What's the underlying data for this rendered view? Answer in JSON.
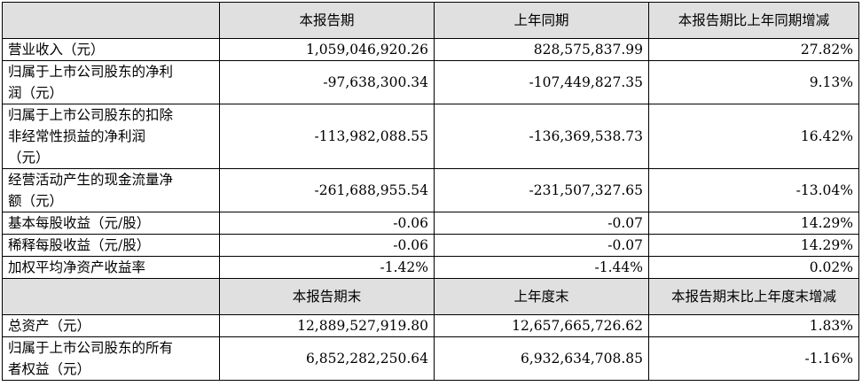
{
  "table": {
    "header1": [
      "",
      "本报告期",
      "上年同期",
      "本报告期比上年同期增减"
    ],
    "rows1": [
      {
        "label_lines": [
          "营业收入（元）"
        ],
        "current": "1,059,046,920.26",
        "prior": "828,575,837.99",
        "change": "27.82%"
      },
      {
        "label_lines": [
          "归属于上市公司股东的净利",
          "润（元）"
        ],
        "current": "-97,638,300.34",
        "prior": "-107,449,827.35",
        "change": "9.13%"
      },
      {
        "label_lines": [
          "归属于上市公司股东的扣除",
          "非经常性损益的净利润",
          "（元）"
        ],
        "current": "-113,982,088.55",
        "prior": "-136,369,538.73",
        "change": "16.42%"
      },
      {
        "label_lines": [
          "经营活动产生的现金流量净",
          "额（元）"
        ],
        "current": "-261,688,955.54",
        "prior": "-231,507,327.65",
        "change": "-13.04%"
      },
      {
        "label_lines": [
          "基本每股收益（元/股）"
        ],
        "current": "-0.06",
        "prior": "-0.07",
        "change": "14.29%"
      },
      {
        "label_lines": [
          "稀释每股收益（元/股）"
        ],
        "current": "-0.06",
        "prior": "-0.07",
        "change": "14.29%"
      },
      {
        "label_lines": [
          "加权平均净资产收益率"
        ],
        "current": "-1.42%",
        "prior": "-1.44%",
        "change": "0.02%"
      }
    ],
    "header2": [
      "",
      "本报告期末",
      "上年度末",
      "本报告期末比上年度末增减"
    ],
    "rows2": [
      {
        "label_lines": [
          "总资产（元）"
        ],
        "current": "12,889,527,919.80",
        "prior": "12,657,665,726.62",
        "change": "1.83%"
      },
      {
        "label_lines": [
          "归属于上市公司股东的所有",
          "者权益（元）"
        ],
        "current": "6,852,282,250.64",
        "prior": "6,932,634,708.85",
        "change": "-1.16%"
      }
    ]
  }
}
